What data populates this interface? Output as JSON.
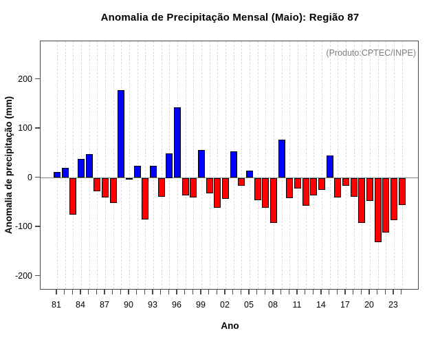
{
  "chart_data": {
    "type": "bar",
    "title": "Anomalia de Precipitação Mensal (Maio): Região 87",
    "xlabel": "Ano",
    "ylabel": "Anomalia de precipitação (mm)",
    "annotation": "(Produto:CPTEC/INPE)",
    "grid": "vertical-dashed",
    "legend": "none",
    "ylim": [
      -227,
      278
    ],
    "y_ticks": [
      200,
      100,
      0,
      -100,
      -200
    ],
    "x_tick_labels": [
      "81",
      "84",
      "87",
      "90",
      "93",
      "96",
      "99",
      "02",
      "05",
      "08",
      "11",
      "14",
      "17",
      "20",
      "23"
    ],
    "x_tick_label_every": 3,
    "positive_color": "#0000ff",
    "negative_color": "#ff0000",
    "zero_line_color": "#8a8a8a",
    "years": [
      1981,
      1982,
      1983,
      1984,
      1985,
      1986,
      1987,
      1988,
      1989,
      1990,
      1991,
      1992,
      1993,
      1994,
      1995,
      1996,
      1997,
      1998,
      1999,
      2000,
      2001,
      2002,
      2003,
      2004,
      2005,
      2006,
      2007,
      2008,
      2009,
      2010,
      2011,
      2012,
      2013,
      2014,
      2015,
      2016,
      2017,
      2018,
      2019,
      2020,
      2021,
      2022,
      2023,
      2024
    ],
    "values": [
      12,
      20,
      -75,
      39,
      48,
      -27,
      -40,
      -51,
      178,
      -3,
      24,
      -84,
      24,
      -38,
      50,
      143,
      -35,
      -40,
      56,
      -31,
      -61,
      -43,
      54,
      -16,
      14,
      -46,
      -61,
      -92,
      78,
      -41,
      -22,
      -57,
      -35,
      -24,
      46,
      -40,
      -16,
      -38,
      -92,
      -47,
      -131,
      -111,
      -86,
      -55
    ]
  }
}
